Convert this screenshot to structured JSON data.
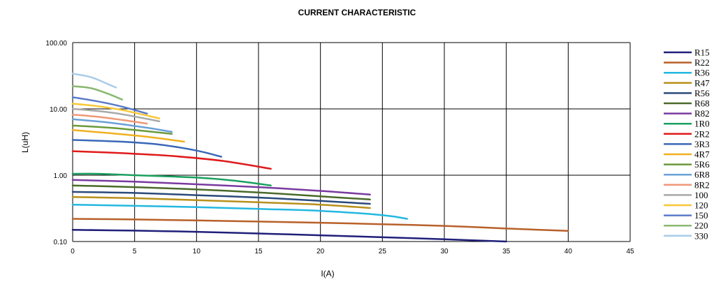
{
  "chart_data": {
    "type": "line",
    "title": "CURRENT CHARACTERISTIC",
    "xlabel": "I(A)",
    "ylabel": "L(uH)",
    "xlim": [
      0,
      45
    ],
    "ylim": [
      0.1,
      100
    ],
    "yscale": "log",
    "grid": true,
    "legend_position": "right",
    "x_ticks": [
      "0",
      "5",
      "10",
      "15",
      "20",
      "25",
      "30",
      "35",
      "40",
      "45"
    ],
    "y_ticks": [
      "0.10",
      "1.00",
      "10.00",
      "100.00"
    ],
    "series": [
      {
        "name": "R15",
        "color": "#1f1f7a",
        "points": [
          [
            0,
            0.15
          ],
          [
            5,
            0.146
          ],
          [
            10,
            0.14
          ],
          [
            15,
            0.132
          ],
          [
            20,
            0.124
          ],
          [
            25,
            0.116
          ],
          [
            30,
            0.108
          ],
          [
            35,
            0.1
          ]
        ]
      },
      {
        "name": "R22",
        "color": "#b8602a",
        "points": [
          [
            0,
            0.22
          ],
          [
            5,
            0.215
          ],
          [
            10,
            0.208
          ],
          [
            15,
            0.2
          ],
          [
            20,
            0.192
          ],
          [
            25,
            0.182
          ],
          [
            30,
            0.172
          ],
          [
            35,
            0.157
          ],
          [
            40,
            0.145
          ]
        ]
      },
      {
        "name": "R36",
        "color": "#22b8e0",
        "points": [
          [
            0,
            0.36
          ],
          [
            5,
            0.345
          ],
          [
            10,
            0.33
          ],
          [
            15,
            0.31
          ],
          [
            20,
            0.29
          ],
          [
            25,
            0.25
          ],
          [
            27,
            0.22
          ]
        ]
      },
      {
        "name": "R47",
        "color": "#b8901a",
        "points": [
          [
            0,
            0.47
          ],
          [
            5,
            0.45
          ],
          [
            10,
            0.42
          ],
          [
            15,
            0.39
          ],
          [
            20,
            0.36
          ],
          [
            24,
            0.32
          ]
        ]
      },
      {
        "name": "R56",
        "color": "#2a4a7a",
        "points": [
          [
            0,
            0.56
          ],
          [
            5,
            0.54
          ],
          [
            10,
            0.5
          ],
          [
            15,
            0.46
          ],
          [
            20,
            0.41
          ],
          [
            24,
            0.37
          ]
        ]
      },
      {
        "name": "R68",
        "color": "#4a6a2a",
        "points": [
          [
            0,
            0.7
          ],
          [
            5,
            0.66
          ],
          [
            10,
            0.61
          ],
          [
            15,
            0.55
          ],
          [
            20,
            0.48
          ],
          [
            24,
            0.43
          ]
        ]
      },
      {
        "name": "R82",
        "color": "#7a3aa0",
        "points": [
          [
            0,
            0.85
          ],
          [
            5,
            0.8
          ],
          [
            10,
            0.73
          ],
          [
            15,
            0.66
          ],
          [
            20,
            0.58
          ],
          [
            24,
            0.51
          ]
        ]
      },
      {
        "name": "1R0",
        "color": "#1aa060",
        "points": [
          [
            0,
            1.05
          ],
          [
            2,
            1.05
          ],
          [
            5,
            1.0
          ],
          [
            10,
            0.92
          ],
          [
            13,
            0.83
          ],
          [
            16,
            0.7
          ]
        ]
      },
      {
        "name": "2R2",
        "color": "#e01a1a",
        "points": [
          [
            0,
            2.3
          ],
          [
            4,
            2.15
          ],
          [
            8,
            1.95
          ],
          [
            12,
            1.65
          ],
          [
            16,
            1.25
          ]
        ]
      },
      {
        "name": "3R3",
        "color": "#3a68b8",
        "points": [
          [
            0,
            3.4
          ],
          [
            4,
            3.2
          ],
          [
            7,
            2.9
          ],
          [
            10,
            2.35
          ],
          [
            12,
            1.9
          ]
        ]
      },
      {
        "name": "4R7",
        "color": "#f0b020",
        "points": [
          [
            0,
            4.8
          ],
          [
            3,
            4.3
          ],
          [
            6,
            3.8
          ],
          [
            9,
            3.2
          ]
        ]
      },
      {
        "name": "5R6",
        "color": "#6a9a3a",
        "points": [
          [
            0,
            5.6
          ],
          [
            3,
            5.2
          ],
          [
            6,
            4.6
          ],
          [
            8,
            4.2
          ]
        ]
      },
      {
        "name": "6R8",
        "color": "#6aa0d8",
        "points": [
          [
            0,
            7.0
          ],
          [
            3,
            6.2
          ],
          [
            6,
            5.2
          ],
          [
            8,
            4.5
          ]
        ]
      },
      {
        "name": "8R2",
        "color": "#f09878",
        "points": [
          [
            0,
            8.2
          ],
          [
            2,
            7.6
          ],
          [
            4,
            6.8
          ],
          [
            6,
            6.0
          ]
        ]
      },
      {
        "name": "100",
        "color": "#a8a8a8",
        "points": [
          [
            0,
            10.0
          ],
          [
            2,
            9.3
          ],
          [
            4,
            8.3
          ],
          [
            7,
            6.5
          ]
        ]
      },
      {
        "name": "120",
        "color": "#f8c838",
        "points": [
          [
            0,
            12.0
          ],
          [
            2,
            11.0
          ],
          [
            4,
            9.6
          ],
          [
            7,
            7.2
          ]
        ]
      },
      {
        "name": "150",
        "color": "#5a7ac8",
        "points": [
          [
            0,
            15.0
          ],
          [
            2,
            13.0
          ],
          [
            4,
            10.8
          ],
          [
            6,
            8.5
          ]
        ]
      },
      {
        "name": "220",
        "color": "#88b870",
        "points": [
          [
            0,
            22.0
          ],
          [
            1.5,
            20.5
          ],
          [
            3,
            16.5
          ],
          [
            4,
            13.8
          ]
        ]
      },
      {
        "name": "330",
        "color": "#a8cce8",
        "points": [
          [
            0,
            34.0
          ],
          [
            1.5,
            30.0
          ],
          [
            3,
            23.0
          ],
          [
            3.5,
            21.0
          ]
        ]
      }
    ]
  }
}
